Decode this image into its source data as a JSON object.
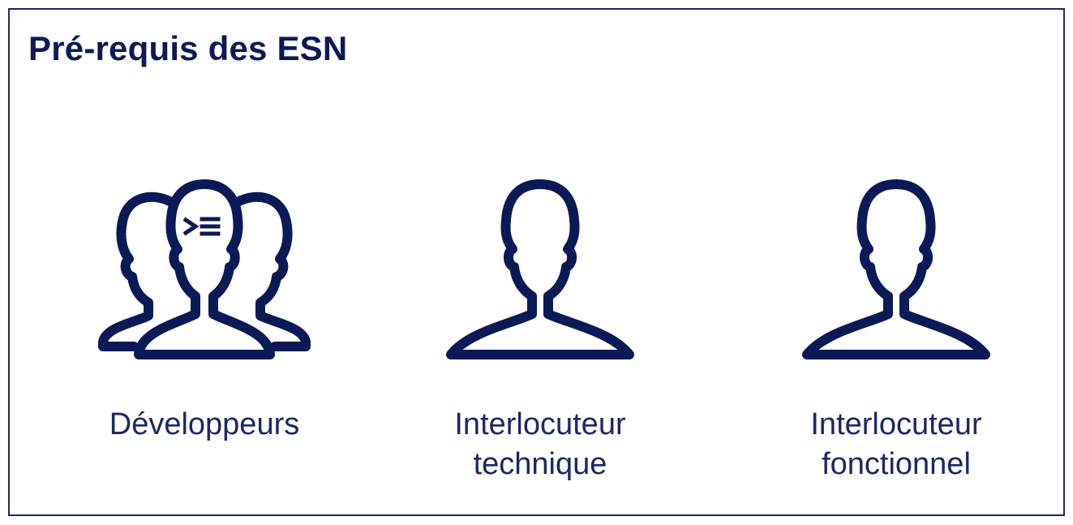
{
  "title": "Pré-requis des ESN",
  "colors": {
    "primary": "#0b1a57",
    "border": "#1a2a6b",
    "text": "#1a2866"
  },
  "roles": [
    {
      "icon": "developer-group-icon",
      "lines": [
        "Développeurs"
      ]
    },
    {
      "icon": "person-icon",
      "lines": [
        "Interlocuteur",
        "technique"
      ]
    },
    {
      "icon": "person-icon",
      "lines": [
        "Interlocuteur",
        "fonctionnel"
      ]
    }
  ]
}
